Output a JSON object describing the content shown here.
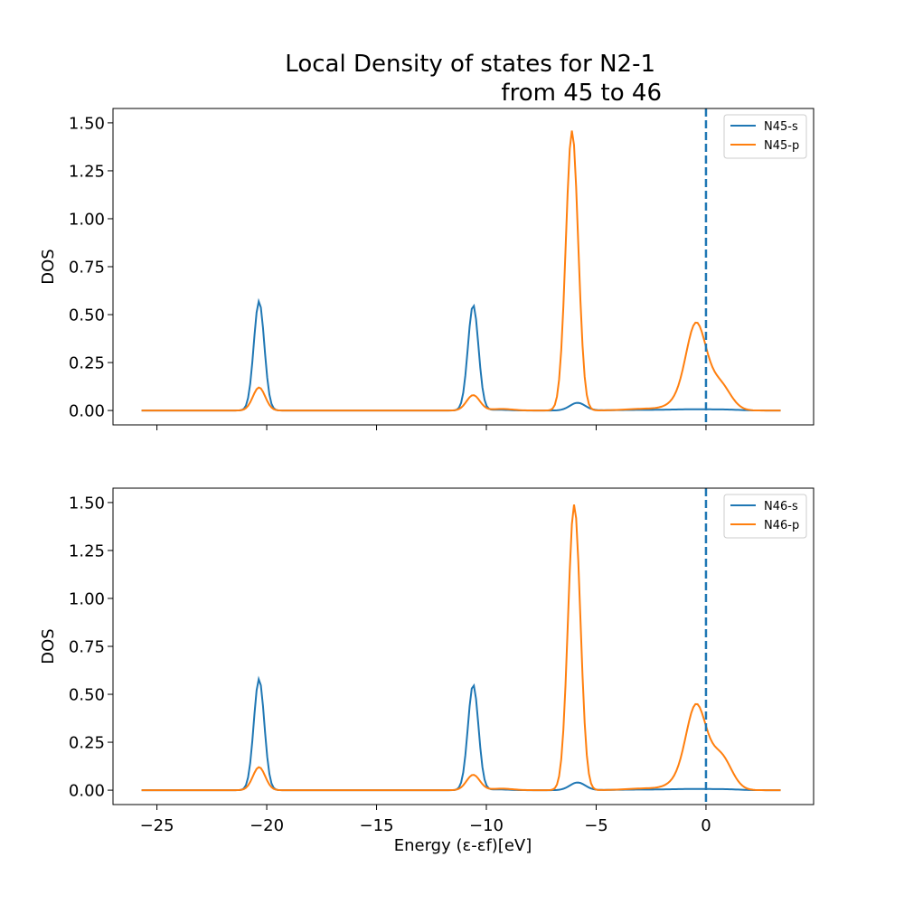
{
  "chart_data": {
    "title_line1": "Local Density of states for N2-1",
    "title_line2": "from 45 to 46",
    "xlabel": "Energy (ε-εf)[eV]",
    "ylabel": "DOS",
    "xlim": [
      -27.0,
      4.9
    ],
    "ylim": [
      -0.075,
      1.575
    ],
    "xticks": [
      -25,
      -20,
      -15,
      -10,
      -5,
      0
    ],
    "xtick_labels": [
      "−25",
      "−20",
      "−15",
      "−10",
      "−5",
      "0"
    ],
    "yticks": [
      0.0,
      0.25,
      0.5,
      0.75,
      1.0,
      1.25,
      1.5
    ],
    "ytick_labels": [
      "0.00",
      "0.25",
      "0.50",
      "0.75",
      "1.00",
      "1.25",
      "1.50"
    ],
    "fermi_level": 0,
    "colors": {
      "s": "#1f77b4",
      "p": "#ff7f0e",
      "fermi": "#1f77b4"
    },
    "legend_position": "top-right",
    "x_range": [
      -25.7,
      3.4
    ],
    "subplots": [
      {
        "type": "line",
        "ylabel": "DOS",
        "series": [
          {
            "name": "N45-s",
            "color": "#1f77b4",
            "peaks": [
              {
                "center": -20.35,
                "height": 0.57,
                "width": 0.24
              },
              {
                "center": -10.6,
                "height": 0.55,
                "width": 0.24
              },
              {
                "center": -5.85,
                "height": 0.04,
                "width": 0.35
              },
              {
                "center": -9.5,
                "height": 0.004,
                "width": 0.5
              },
              {
                "center": -3.0,
                "height": 0.003,
                "width": 1.2
              },
              {
                "center": -0.5,
                "height": 0.006,
                "width": 1.0
              },
              {
                "center": 1.0,
                "height": 0.003,
                "width": 0.6
              }
            ]
          },
          {
            "name": "N45-p",
            "color": "#ff7f0e",
            "peaks": [
              {
                "center": -20.35,
                "height": 0.12,
                "width": 0.28
              },
              {
                "center": -10.6,
                "height": 0.08,
                "width": 0.3
              },
              {
                "center": -9.3,
                "height": 0.008,
                "width": 0.5
              },
              {
                "center": -6.1,
                "height": 1.46,
                "width": 0.28
              },
              {
                "center": -2.5,
                "height": 0.01,
                "width": 1.0
              },
              {
                "center": -1.2,
                "height": 0.04,
                "width": 0.5
              },
              {
                "center": -0.45,
                "height": 0.43,
                "width": 0.45
              },
              {
                "center": 0.6,
                "height": 0.14,
                "width": 0.5
              }
            ]
          }
        ]
      },
      {
        "type": "line",
        "ylabel": "DOS",
        "series": [
          {
            "name": "N46-s",
            "color": "#1f77b4",
            "peaks": [
              {
                "center": -20.35,
                "height": 0.58,
                "width": 0.24
              },
              {
                "center": -10.6,
                "height": 0.55,
                "width": 0.24
              },
              {
                "center": -5.85,
                "height": 0.04,
                "width": 0.35
              },
              {
                "center": -9.5,
                "height": 0.004,
                "width": 0.5
              },
              {
                "center": -3.0,
                "height": 0.003,
                "width": 1.2
              },
              {
                "center": -0.5,
                "height": 0.006,
                "width": 1.0
              },
              {
                "center": 1.0,
                "height": 0.003,
                "width": 0.6
              }
            ]
          },
          {
            "name": "N46-p",
            "color": "#ff7f0e",
            "peaks": [
              {
                "center": -20.35,
                "height": 0.12,
                "width": 0.28
              },
              {
                "center": -10.6,
                "height": 0.08,
                "width": 0.3
              },
              {
                "center": -9.3,
                "height": 0.008,
                "width": 0.5
              },
              {
                "center": -6.0,
                "height": 1.49,
                "width": 0.28
              },
              {
                "center": -2.5,
                "height": 0.01,
                "width": 1.0
              },
              {
                "center": -1.2,
                "height": 0.04,
                "width": 0.5
              },
              {
                "center": -0.45,
                "height": 0.42,
                "width": 0.45
              },
              {
                "center": 0.65,
                "height": 0.18,
                "width": 0.5
              }
            ]
          }
        ]
      }
    ]
  }
}
